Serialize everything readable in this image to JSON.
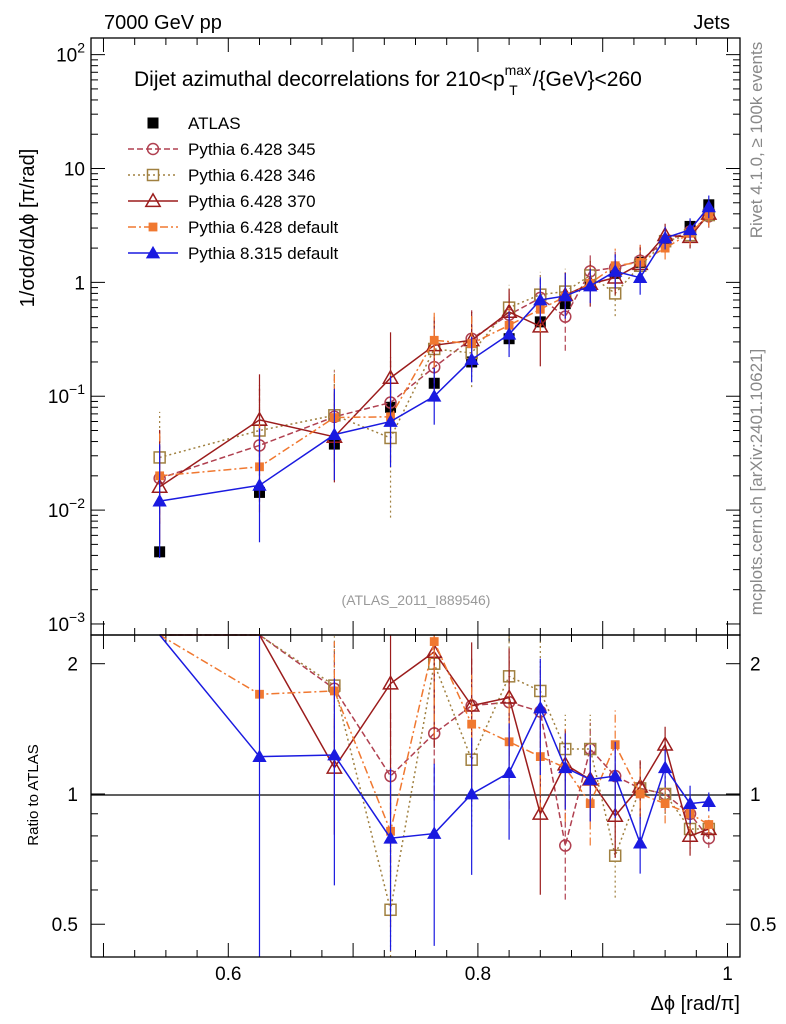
{
  "header": {
    "left": "7000 GeV pp",
    "right": "Jets"
  },
  "side_labels": {
    "rivet": "Rivet 4.1.0, ≥ 100k events",
    "mcplots": "mcplots.cern.ch [arXiv:2401.10621]"
  },
  "chart_data": {
    "type": "line",
    "title_main": "Dijet azimuthal decorrelations for 210<p",
    "title_sup": "max",
    "title_sub": "T",
    "title_tail": "/{GeV}<260",
    "ylabel": "1/σdσ/dΔϕ [π/rad]",
    "xlabel": "Δϕ [rad/π]",
    "ratio_ylabel": "Ratio to ATLAS",
    "analysis": "(ATLAS_2011_I889546)",
    "xlim": [
      0.49,
      1.01
    ],
    "ylim_main": [
      0.0008,
      140
    ],
    "ylim_ratio": [
      0.42,
      2.33
    ],
    "x_ticks": [
      {
        "value": 0.6,
        "label": "0.6"
      },
      {
        "value": 0.8,
        "label": "0.8"
      },
      {
        "value": 1.0,
        "label": "1"
      }
    ],
    "y_ticks_main": [
      {
        "value": 0.001,
        "base": "10",
        "exp": "−3"
      },
      {
        "value": 0.01,
        "base": "10",
        "exp": "−2"
      },
      {
        "value": 0.1,
        "base": "10",
        "exp": "−1"
      },
      {
        "value": 1,
        "base": "1",
        "exp": ""
      },
      {
        "value": 10,
        "base": "10",
        "exp": ""
      },
      {
        "value": 100,
        "base": "10",
        "exp": "2"
      }
    ],
    "y_ticks_ratio": [
      {
        "value": 0.5,
        "label": "0.5"
      },
      {
        "value": 1,
        "label": "1"
      },
      {
        "value": 2,
        "label": "2"
      }
    ],
    "series": [
      {
        "name": "ATLAS",
        "color": "#000000",
        "marker": "square-filled",
        "dash": "",
        "show_line": false,
        "x": [
          0.545,
          0.625,
          0.685,
          0.73,
          0.765,
          0.795,
          0.825,
          0.85,
          0.87,
          0.89,
          0.91,
          0.93,
          0.95,
          0.97,
          0.985
        ],
        "y": [
          0.0043,
          0.0143,
          0.038,
          0.08,
          0.13,
          0.2,
          0.32,
          0.45,
          0.65,
          0.95,
          1.2,
          1.5,
          2.3,
          3.1,
          4.8
        ],
        "err": [
          0,
          0,
          0,
          0,
          0,
          0,
          0,
          0,
          0,
          0,
          0,
          0,
          0,
          0,
          0
        ],
        "ratio": [
          1,
          1,
          1,
          1,
          1,
          1,
          1,
          1,
          1,
          1,
          1,
          1,
          1,
          1,
          1
        ],
        "ratio_err": [
          0,
          0,
          0,
          0,
          0,
          0,
          0,
          0,
          0,
          0,
          0,
          0,
          0,
          0,
          0
        ]
      },
      {
        "name": "Pythia 6.428 345",
        "color": "#b04050",
        "marker": "circle-open",
        "dash": "6,3",
        "show_line": true,
        "x": [
          0.545,
          0.625,
          0.685,
          0.73,
          0.765,
          0.795,
          0.825,
          0.85,
          0.87,
          0.89,
          0.91,
          0.93,
          0.95,
          0.97,
          0.985
        ],
        "y": [
          0.019,
          0.037,
          0.066,
          0.088,
          0.18,
          0.32,
          0.52,
          0.73,
          0.5,
          1.25,
          1.35,
          1.55,
          2.3,
          2.8,
          3.8
        ],
        "err": [
          0.4,
          0.5,
          0.4,
          0.4,
          0.3,
          0.25,
          0.2,
          0.2,
          0.3,
          0.15,
          0.15,
          0.15,
          0.1,
          0.1,
          0.1
        ],
        "ratio": [
          4.4,
          2.6,
          1.75,
          1.1,
          1.38,
          1.6,
          1.63,
          1.55,
          0.76,
          1.27,
          1.1,
          1.03,
          1.0,
          0.9,
          0.79
        ],
        "ratio_err": [
          0,
          0,
          0.3,
          0.4,
          0.3,
          0.3,
          0.25,
          0.25,
          0.25,
          0.15,
          0.15,
          0.15,
          0.1,
          0.1,
          0.05
        ]
      },
      {
        "name": "Pythia 6.428 346",
        "color": "#a08040",
        "marker": "square-open",
        "dash": "2,3",
        "show_line": true,
        "x": [
          0.545,
          0.625,
          0.685,
          0.73,
          0.765,
          0.795,
          0.825,
          0.85,
          0.87,
          0.89,
          0.91,
          0.93,
          0.95,
          0.97,
          0.985
        ],
        "y": [
          0.029,
          0.05,
          0.068,
          0.043,
          0.26,
          0.24,
          0.6,
          0.78,
          0.83,
          1.15,
          0.8,
          1.4,
          2.3,
          2.6,
          3.9
        ],
        "err": [
          0.4,
          0.4,
          0.4,
          0.7,
          0.25,
          0.3,
          0.2,
          0.2,
          0.2,
          0.15,
          0.2,
          0.15,
          0.1,
          0.1,
          0.1
        ],
        "ratio": [
          6.7,
          3.5,
          1.78,
          0.54,
          2.0,
          1.2,
          1.87,
          1.73,
          1.27,
          1.27,
          0.72,
          1.03,
          1.0,
          0.83,
          0.83
        ],
        "ratio_err": [
          0,
          0,
          0.3,
          0.5,
          0.3,
          0.3,
          0.3,
          0.3,
          0.2,
          0.2,
          0.2,
          0.15,
          0.1,
          0.1,
          0.05
        ]
      },
      {
        "name": "Pythia 6.428 370",
        "color": "#9b1c1c",
        "marker": "triangle-open",
        "dash": "",
        "show_line": true,
        "x": [
          0.545,
          0.625,
          0.685,
          0.73,
          0.765,
          0.795,
          0.825,
          0.85,
          0.87,
          0.89,
          0.91,
          0.93,
          0.95,
          0.97,
          0.985
        ],
        "y": [
          0.016,
          0.062,
          0.044,
          0.145,
          0.28,
          0.31,
          0.55,
          0.41,
          0.77,
          0.97,
          1.1,
          1.45,
          2.6,
          2.5,
          4.0
        ],
        "err": [
          0.5,
          0.4,
          0.4,
          0.4,
          0.25,
          0.25,
          0.2,
          0.35,
          0.2,
          0.2,
          0.15,
          0.15,
          0.1,
          0.1,
          0.1
        ],
        "ratio": [
          3.7,
          4.3,
          1.15,
          1.8,
          2.13,
          1.6,
          1.67,
          0.9,
          1.17,
          1.08,
          0.89,
          1.04,
          1.3,
          0.8,
          0.83
        ],
        "ratio_err": [
          0,
          0,
          0.3,
          0.5,
          0.4,
          0.4,
          0.3,
          0.35,
          0.2,
          0.2,
          0.2,
          0.15,
          0.1,
          0.1,
          0.05
        ]
      },
      {
        "name": "Pythia 6.428 default",
        "color": "#f07830",
        "marker": "square-filled-small",
        "dash": "8,3,2,3",
        "show_line": true,
        "x": [
          0.545,
          0.625,
          0.685,
          0.73,
          0.765,
          0.795,
          0.825,
          0.85,
          0.87,
          0.89,
          0.91,
          0.93,
          0.95,
          0.97,
          0.985
        ],
        "y": [
          0.02,
          0.024,
          0.065,
          0.066,
          0.31,
          0.29,
          0.42,
          0.58,
          0.75,
          0.98,
          1.4,
          1.5,
          2.0,
          2.7,
          3.9
        ],
        "err": [
          0.4,
          0.4,
          0.4,
          0.4,
          0.25,
          0.25,
          0.2,
          0.2,
          0.2,
          0.15,
          0.15,
          0.15,
          0.1,
          0.1,
          0.1
        ],
        "ratio": [
          4.6,
          1.7,
          1.73,
          0.82,
          2.25,
          1.45,
          1.32,
          1.22,
          1.15,
          0.95,
          1.3,
          1.0,
          0.95,
          0.9,
          0.85
        ],
        "ratio_err": [
          0,
          0,
          0.3,
          0.4,
          0.4,
          0.3,
          0.3,
          0.25,
          0.25,
          0.2,
          0.2,
          0.15,
          0.1,
          0.1,
          0.05
        ]
      },
      {
        "name": "Pythia 8.315 default",
        "color": "#1a1ae0",
        "marker": "triangle-filled",
        "dash": "",
        "show_line": true,
        "x": [
          0.545,
          0.625,
          0.685,
          0.73,
          0.765,
          0.795,
          0.825,
          0.85,
          0.87,
          0.89,
          0.91,
          0.93,
          0.95,
          0.97,
          0.985
        ],
        "y": [
          0.012,
          0.0165,
          0.046,
          0.06,
          0.1,
          0.21,
          0.35,
          0.7,
          0.76,
          0.93,
          1.25,
          1.1,
          2.45,
          2.9,
          4.6
        ],
        "err": [
          0.5,
          0.5,
          0.4,
          0.4,
          0.25,
          0.2,
          0.2,
          0.2,
          0.2,
          0.15,
          0.15,
          0.15,
          0.1,
          0.1,
          0.1
        ],
        "ratio": [
          2.8,
          1.22,
          1.23,
          0.79,
          0.81,
          1.0,
          1.12,
          1.58,
          1.15,
          1.08,
          1.1,
          0.77,
          1.15,
          0.95,
          0.96
        ],
        "ratio_err": [
          0,
          0.9,
          0.5,
          0.45,
          0.45,
          0.35,
          0.3,
          0.3,
          0.2,
          0.2,
          0.2,
          0.15,
          0.1,
          0.1,
          0.05
        ]
      }
    ]
  }
}
